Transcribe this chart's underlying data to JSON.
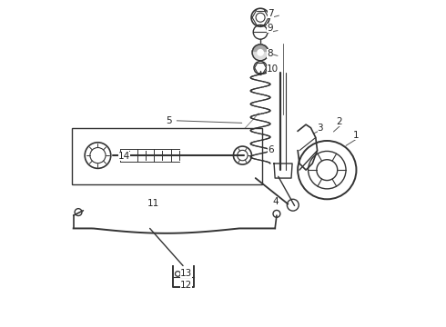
{
  "background_color": "#ffffff",
  "line_color": "#333333",
  "text_color": "#222222",
  "figsize": [
    4.9,
    3.6
  ],
  "dpi": 100
}
